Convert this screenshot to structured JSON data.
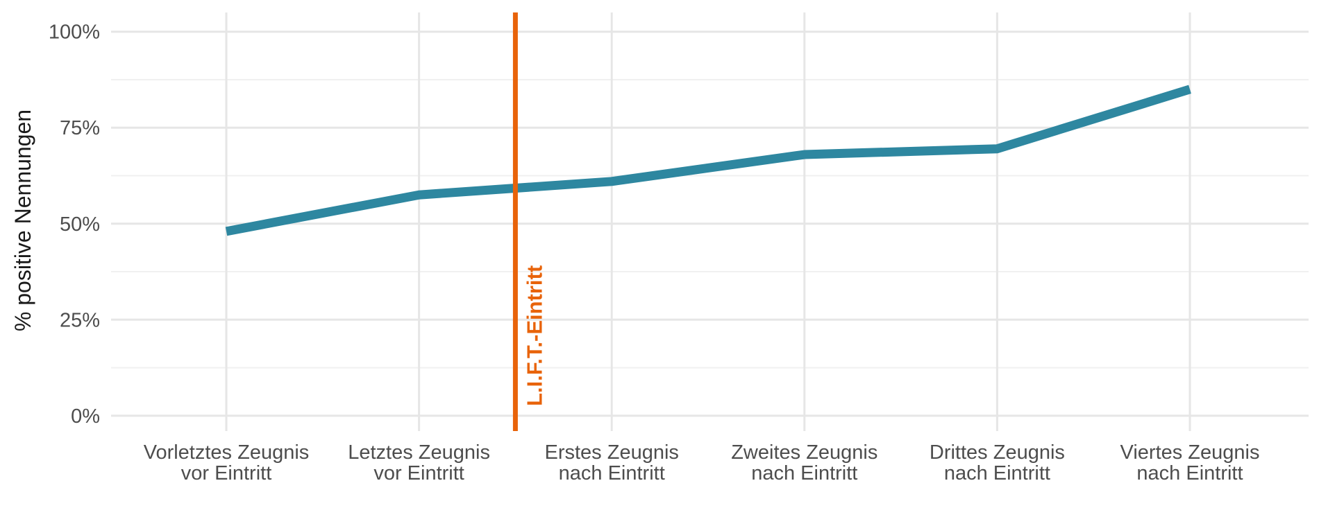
{
  "chart_data": {
    "type": "line",
    "ylabel": "% positive Nennungen",
    "xlabel": "",
    "categories": [
      [
        "Vorletztes Zeugnis",
        "vor Eintritt"
      ],
      [
        "Letztes Zeugnis",
        "vor Eintritt"
      ],
      [
        "Erstes Zeugnis",
        "nach Eintritt"
      ],
      [
        "Zweites Zeugnis",
        "nach Eintritt"
      ],
      [
        "Drittes Zeugnis",
        "nach Eintritt"
      ],
      [
        "Viertes Zeugnis",
        "nach Eintritt"
      ]
    ],
    "series": [
      {
        "values": [
          48,
          57.5,
          61,
          68,
          69.5,
          85
        ],
        "color": "#2e87a0"
      }
    ],
    "ylim": [
      -4,
      105
    ],
    "yticks": [
      0,
      25,
      50,
      75,
      100
    ],
    "ytick_labels": [
      "0%",
      "25%",
      "50%",
      "75%",
      "100%"
    ],
    "grid": true,
    "legend": "none",
    "annotation": {
      "label": "L.I.F.T.-Eintritt",
      "x_between": [
        2,
        3
      ],
      "color": "#e8630a"
    }
  }
}
